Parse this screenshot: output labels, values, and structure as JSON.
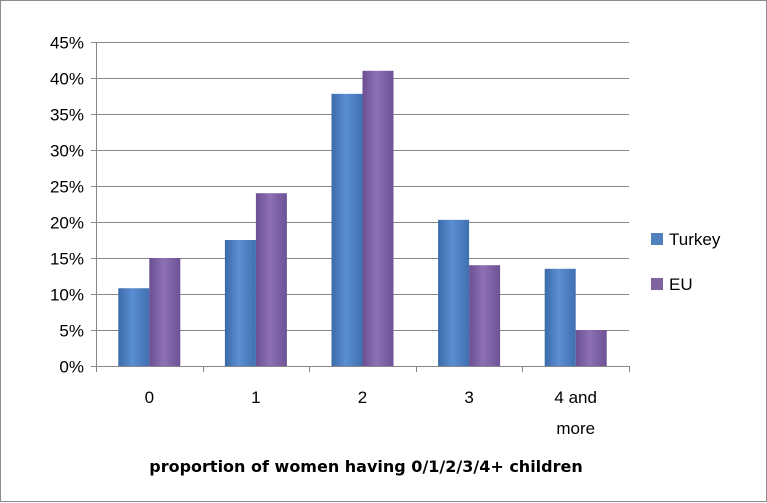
{
  "chart_data": {
    "type": "bar",
    "title": "",
    "xlabel": "proportion of women having 0/1/2/3/4+ children",
    "ylabel": "",
    "categories": [
      "0",
      "1",
      "2",
      "3",
      "4 and more"
    ],
    "category_lines": [
      [
        "0"
      ],
      [
        "1"
      ],
      [
        "2"
      ],
      [
        "3"
      ],
      [
        "4 and",
        "more"
      ]
    ],
    "series": [
      {
        "name": "Turkey",
        "values": [
          10.8,
          17.5,
          37.8,
          20.3,
          13.5
        ],
        "color": "#4f81bd"
      },
      {
        "name": "EU",
        "values": [
          15.0,
          24.0,
          41.0,
          14.0,
          5.0
        ],
        "color": "#8064a2"
      }
    ],
    "ylim": [
      0,
      45
    ],
    "yticks": [
      0,
      5,
      10,
      15,
      20,
      25,
      30,
      35,
      40,
      45
    ],
    "ytick_labels": [
      "0%",
      "5%",
      "10%",
      "15%",
      "20%",
      "25%",
      "30%",
      "35%",
      "40%",
      "45%"
    ],
    "grid": true,
    "legend_position": "right"
  }
}
